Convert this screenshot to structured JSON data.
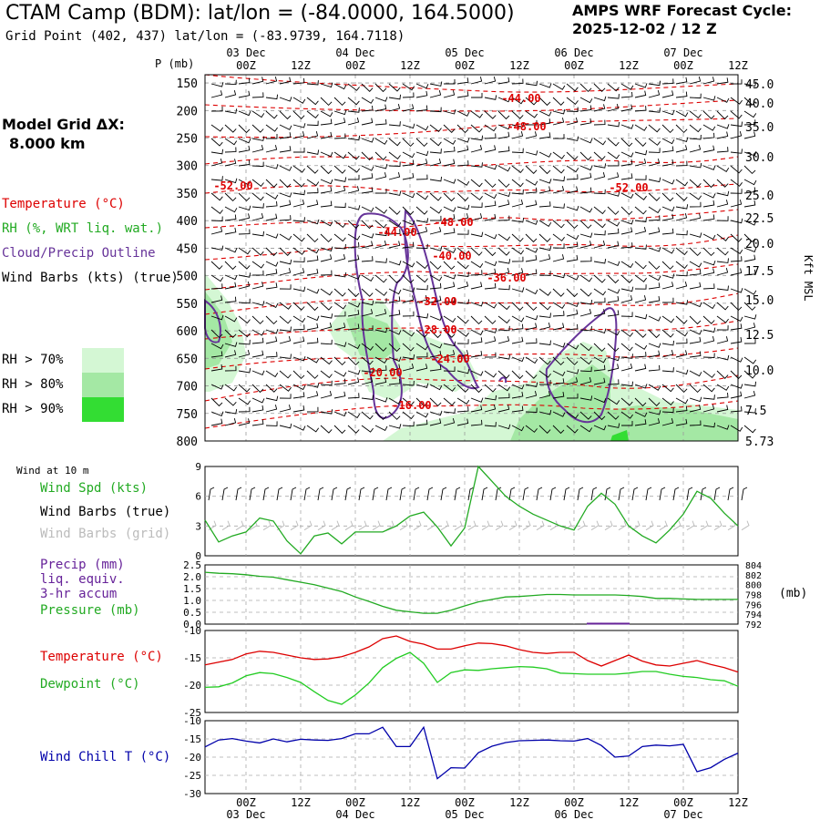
{
  "header": {
    "title": "CTAM Camp (BDM):  lat/lon = (-84.0000, 164.5000)",
    "subtitle": "Grid Point (402, 437) lat/lon = (-83.9739, 164.7118)",
    "cycle_line1": "AMPS WRF Forecast Cycle:",
    "cycle_line2": "2025-12-02 / 12  Z",
    "model_grid_line1": "Model Grid ΔX:",
    "model_grid_line2": "8.000 km"
  },
  "colors": {
    "temperature": "#dd0000",
    "rh": "#22aa22",
    "cloud": "#663399",
    "wind": "#000000",
    "wind_grid": "#aaaaaa",
    "precip": "#662299",
    "pressure": "#22aa22",
    "dewpoint": "#22cc22",
    "windchill": "#0000aa",
    "rh70": "#d4f7d4",
    "rh80": "#a4e8a4",
    "rh90": "#33dd33"
  },
  "time_axis": {
    "top_dates": [
      "03 Dec",
      "04 Dec",
      "05 Dec",
      "06 Dec",
      "07 Dec"
    ],
    "hours": [
      "00Z",
      "12Z",
      "00Z",
      "12Z",
      "00Z",
      "12Z",
      "00Z",
      "12Z",
      "00Z",
      "12Z"
    ],
    "bottom_hours": [
      "00Z",
      "12Z",
      "00Z",
      "12Z",
      "00Z",
      "12Z",
      "00Z",
      "12Z",
      "00Z",
      "12Z"
    ],
    "bottom_dates": [
      "03 Dec",
      "04 Dec",
      "05 Dec",
      "06 Dec",
      "07 Dec"
    ]
  },
  "legend": {
    "temperature": "Temperature (°C)",
    "rh": "RH (%, WRT liq. wat.)",
    "cloud": "Cloud/Precip Outline",
    "wind": "Wind Barbs (kts) (true)",
    "rh70": "RH > 70%",
    "rh80": "RH > 80%",
    "rh90": "RH > 90%",
    "wind10m": "Wind at 10 m",
    "wind_spd": "Wind Spd (kts)",
    "wind_barbs_true": "Wind Barbs (true)",
    "wind_barbs_grid": "Wind Barbs (grid)",
    "precip1": "Precip (mm)",
    "precip2": "liq. equiv.",
    "precip3": "3-hr accum",
    "pressure": "Pressure (mb)",
    "temp2": "Temperature (°C)",
    "dewpoint": "Dewpoint (°C)",
    "windchill": "Wind Chill T (°C)",
    "p_axis_label": "P (mb)",
    "kft_label": "Kft MSL",
    "mb_label": "(mb)"
  },
  "chart_data": [
    {
      "type": "line",
      "panel": "cross-section",
      "p_levels": [
        "150",
        "200",
        "250",
        "300",
        "350",
        "400",
        "450",
        "500",
        "550",
        "600",
        "650",
        "700",
        "750",
        "800"
      ],
      "kft_levels": [
        "45.0",
        "40.0",
        "35.0",
        "30.0",
        "25.0",
        "22.5",
        "20.0",
        "17.5",
        "15.0",
        "12.5",
        "10.0",
        "7.5",
        "5.73"
      ],
      "temp_labels": [
        "-44.00",
        "-48.00",
        "-52.00",
        "-52.00",
        "-48.00",
        "-44.00",
        "-40.00",
        "-36.00",
        "-32.00",
        "-28.00",
        "-24.00",
        "-20.00",
        "-16.00"
      ]
    },
    {
      "type": "line",
      "panel": "wind-10m",
      "ylim": [
        0,
        9
      ],
      "yticks": [
        "9",
        "6",
        "3",
        "0"
      ],
      "x_hours": [
        0,
        3,
        6,
        9,
        12,
        15,
        18,
        21,
        24,
        27,
        30,
        33,
        36,
        39,
        42,
        45,
        48,
        51,
        54,
        57,
        60,
        63,
        66,
        69,
        72,
        75,
        78,
        81,
        84,
        87,
        90,
        93,
        96,
        99,
        102,
        105,
        108,
        111,
        114,
        117
      ],
      "series": [
        {
          "name": "Wind Spd (kts)",
          "values": [
            3.6,
            1.4,
            2.0,
            2.4,
            3.8,
            3.5,
            1.5,
            0.2,
            2.0,
            2.3,
            1.2,
            2.4,
            2.4,
            2.4,
            3.0,
            4.0,
            4.4,
            2.9,
            1.0,
            2.8,
            9.0,
            7.5,
            6.0,
            5.0,
            4.2,
            3.6,
            3.0,
            2.6,
            5.0,
            6.3,
            5.2,
            3.0,
            2.0,
            1.3,
            2.6,
            4.2,
            6.5,
            5.8,
            4.3,
            3.0
          ]
        }
      ]
    },
    {
      "type": "line",
      "panel": "precip-pressure",
      "precip_ylim": [
        0,
        2.5
      ],
      "precip_yticks": [
        "2.5",
        "2.0",
        "1.5",
        "1.0",
        "0.5",
        "0.0"
      ],
      "pressure_yticks": [
        "804",
        "802",
        "800",
        "798",
        "796",
        "794",
        "792"
      ],
      "pressure_ylim": [
        792,
        804
      ],
      "series": [
        {
          "name": "Pressure (mb)",
          "values": [
            802.5,
            802.3,
            802.2,
            802.0,
            801.7,
            801.5,
            801.0,
            800.5,
            800.0,
            799.3,
            798.6,
            797.5,
            796.6,
            795.6,
            794.8,
            794.5,
            794.2,
            794.2,
            794.8,
            795.7,
            796.5,
            797.0,
            797.5,
            797.6,
            797.8,
            798.0,
            798.0,
            797.9,
            797.9,
            797.9,
            797.9,
            797.8,
            797.6,
            797.2,
            797.2,
            797.1,
            797.0,
            797.0,
            797.0,
            797.0
          ]
        },
        {
          "name": "Precip (mm)",
          "values": [
            0,
            0,
            0,
            0,
            0,
            0,
            0,
            0,
            0,
            0,
            0,
            0,
            0,
            0,
            0,
            0,
            0,
            0,
            0,
            0,
            0,
            0,
            0,
            0,
            0,
            0,
            0,
            0,
            0.02,
            0.02,
            0.02,
            0,
            0,
            0,
            0,
            0,
            0,
            0,
            0,
            0
          ]
        }
      ]
    },
    {
      "type": "line",
      "panel": "temp-dewpoint",
      "ylim": [
        -25,
        -10
      ],
      "yticks": [
        "-10",
        "-15",
        "-20",
        "-25"
      ],
      "series": [
        {
          "name": "Temperature (°C)",
          "values": [
            -16.3,
            -15.8,
            -15.3,
            -14.3,
            -13.8,
            -14.0,
            -14.5,
            -15.0,
            -15.3,
            -15.2,
            -14.8,
            -14.0,
            -13.0,
            -11.5,
            -11.0,
            -12.0,
            -12.5,
            -13.4,
            -13.4,
            -12.8,
            -12.3,
            -12.4,
            -12.8,
            -13.5,
            -14.0,
            -14.2,
            -14.0,
            -14.0,
            -15.5,
            -16.5,
            -15.5,
            -14.5,
            -15.6,
            -16.3,
            -16.5,
            -16.0,
            -15.5,
            -16.2,
            -16.8,
            -17.6
          ]
        },
        {
          "name": "Dewpoint (°C)",
          "values": [
            -20.4,
            -20.3,
            -19.6,
            -18.3,
            -17.7,
            -17.9,
            -18.6,
            -19.5,
            -21.2,
            -22.8,
            -23.5,
            -21.8,
            -19.6,
            -16.8,
            -15.1,
            -14.0,
            -16.0,
            -19.5,
            -17.7,
            -17.2,
            -17.3,
            -17.0,
            -16.8,
            -16.6,
            -16.7,
            -17.0,
            -17.8,
            -17.9,
            -18.0,
            -18.0,
            -18.0,
            -17.8,
            -17.5,
            -17.5,
            -18.0,
            -18.4,
            -18.6,
            -19.0,
            -19.2,
            -20.2
          ]
        }
      ]
    },
    {
      "type": "line",
      "panel": "windchill",
      "ylim": [
        -30,
        -10
      ],
      "yticks": [
        "-10",
        "-15",
        "-20",
        "-25",
        "-30"
      ],
      "series": [
        {
          "name": "Wind Chill T (°C)",
          "values": [
            -17.2,
            -15.3,
            -14.9,
            -15.6,
            -16.1,
            -15.0,
            -15.8,
            -15.1,
            -15.3,
            -15.4,
            -14.9,
            -13.6,
            -13.6,
            -11.8,
            -17.1,
            -17.1,
            -11.8,
            -25.9,
            -22.9,
            -23.0,
            -18.8,
            -17.0,
            -16.0,
            -15.5,
            -15.4,
            -15.3,
            -15.5,
            -15.6,
            -14.9,
            -16.8,
            -20.0,
            -19.7,
            -17.1,
            -16.7,
            -16.9,
            -16.5,
            -24.0,
            -22.9,
            -20.6,
            -18.9
          ]
        }
      ]
    }
  ]
}
